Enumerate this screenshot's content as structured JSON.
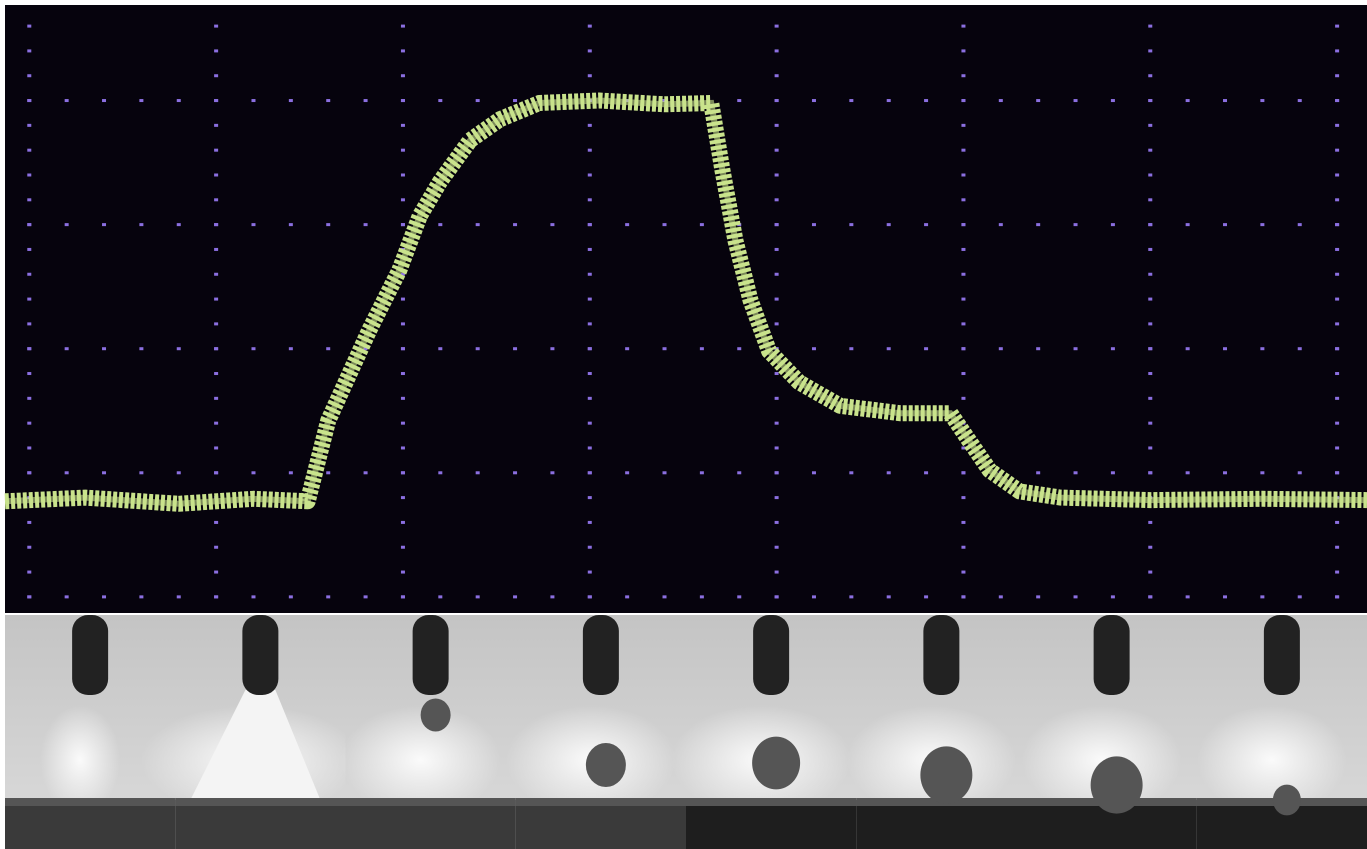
{
  "chart_data": {
    "type": "line",
    "x": [
      -0.13,
      0.3,
      0.8,
      1.2,
      1.49,
      1.6,
      1.82,
      1.98,
      2.09,
      2.2,
      2.36,
      2.52,
      2.73,
      3.05,
      3.4,
      3.65,
      3.71,
      3.78,
      3.86,
      3.96,
      4.12,
      4.34,
      4.66,
      4.93,
      5.03,
      5.14,
      5.3,
      5.52,
      6.0,
      6.6,
      7.16
    ],
    "values": [
      0.77,
      0.8,
      0.75,
      0.79,
      0.77,
      1.42,
      2.15,
      2.63,
      3.07,
      3.35,
      3.68,
      3.85,
      3.98,
      4.0,
      3.97,
      3.98,
      3.44,
      2.87,
      2.39,
      1.98,
      1.73,
      1.54,
      1.48,
      1.48,
      1.26,
      1.02,
      0.85,
      0.8,
      0.78,
      0.79,
      0.78
    ],
    "color": "#c9e38c",
    "xlim": [
      -0.13,
      7.16
    ],
    "ylim": [
      -0.13,
      4.77
    ],
    "xticks": [
      0,
      1,
      2,
      3,
      4,
      5,
      6,
      7
    ],
    "yticks": [
      0,
      1,
      2,
      3,
      4
    ],
    "grid": true
  }
}
